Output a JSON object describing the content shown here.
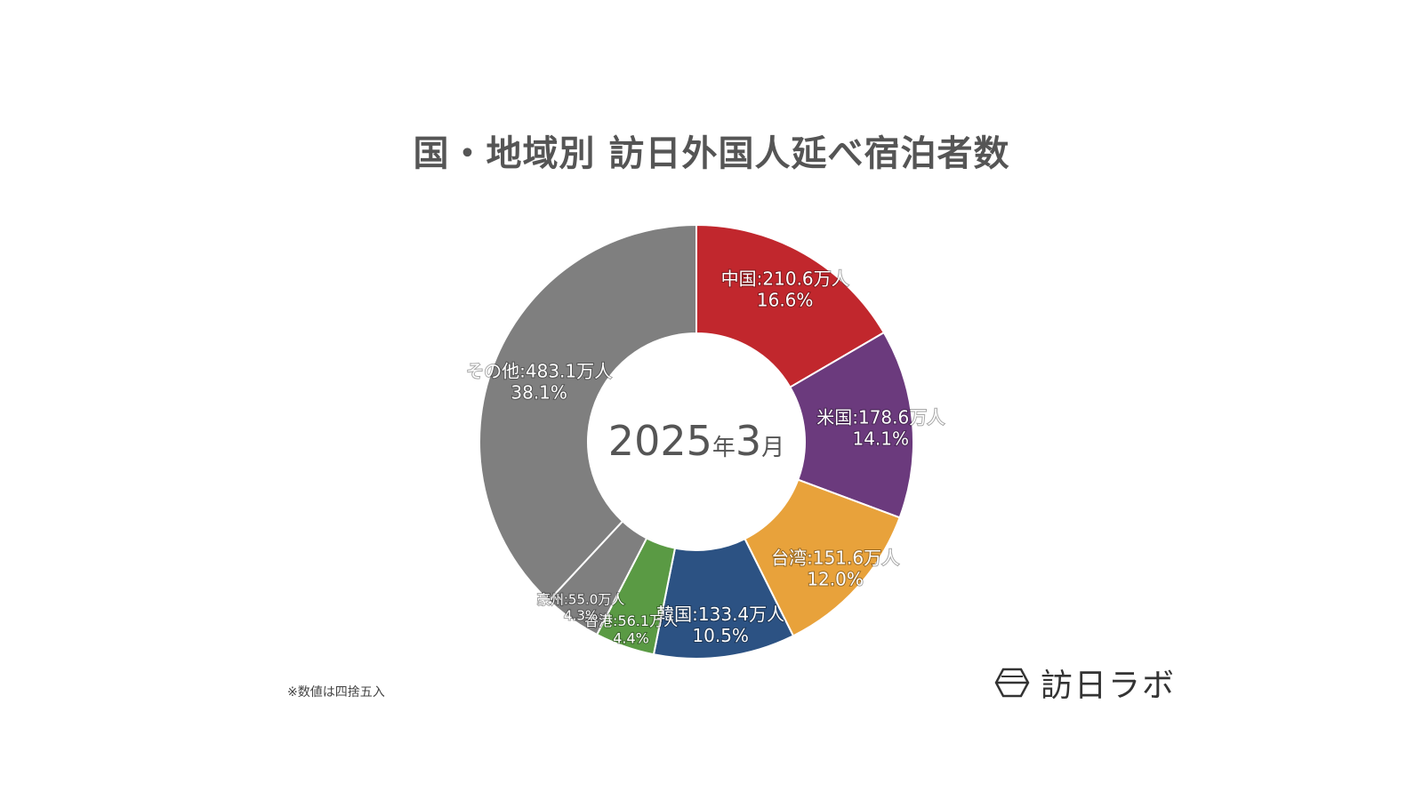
{
  "chart_data": {
    "type": "pie",
    "style": "donut",
    "title": "国・地域別 訪日外国人延べ宿泊者数",
    "center_label": {
      "year": "2025",
      "year_unit": "年",
      "month": "3",
      "month_unit": "月"
    },
    "unit": "万人",
    "categories": [
      "中国",
      "米国",
      "台湾",
      "韓国",
      "香港",
      "豪州",
      "その他"
    ],
    "values": [
      210.6,
      178.6,
      151.6,
      133.4,
      56.1,
      55.0,
      483.1
    ],
    "percents": [
      16.6,
      14.1,
      12.0,
      10.5,
      4.4,
      4.3,
      38.1
    ],
    "value_labels": [
      "210.6万人",
      "178.6万人",
      "151.6万人",
      "133.4万人",
      "56.1万人",
      "55.0万人",
      "483.1万人"
    ],
    "percent_labels": [
      "16.6%",
      "14.1%",
      "12.0%",
      "10.5%",
      "4.4%",
      "4.3%",
      "38.1%"
    ],
    "colors": [
      "#c1272d",
      "#6b3a7d",
      "#e8a23b",
      "#2c5283",
      "#5a9a44",
      "#7f7f7f",
      "#7f7f7f"
    ],
    "start_angle": "12 o'clock",
    "direction": "clockwise"
  },
  "footnote": "※数値は四捨五入",
  "brand": {
    "name": "訪日ラボ",
    "icon": "hexagon-logo-icon"
  }
}
